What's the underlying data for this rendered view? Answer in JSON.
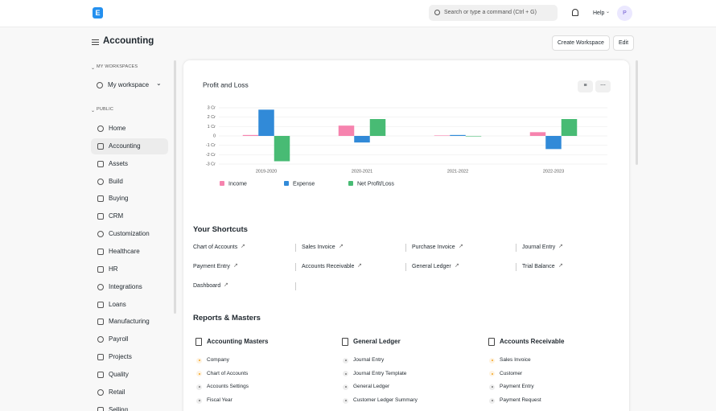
{
  "navbar": {
    "logo": "E",
    "search_placeholder": "Search or type a command (Ctrl + G)",
    "help": "Help",
    "avatar": "P"
  },
  "header": {
    "title": "Accounting",
    "buttons": [
      "Create Workspace",
      "Edit"
    ]
  },
  "sidebar": {
    "sections": [
      {
        "title": "MY WORKSPACES",
        "items": [
          "My workspace"
        ]
      },
      {
        "title": "PUBLIC",
        "active": "Accounting",
        "items": [
          "Home",
          "Accounting",
          "Assets",
          "Build",
          "Buying",
          "CRM",
          "Customization",
          "Healthcare",
          "HR",
          "Integrations",
          "Loans",
          "Manufacturing",
          "Payroll",
          "Projects",
          "Quality",
          "Retail",
          "Selling"
        ]
      }
    ]
  },
  "chart_data": {
    "type": "bar",
    "title": "Profit and Loss",
    "categories": [
      "2019-2020",
      "2020-2021",
      "2021-2022",
      "2022-2023"
    ],
    "series": [
      {
        "name": "Income",
        "color": "#f683ae",
        "values": [
          0.1,
          1.1,
          0.05,
          0.4
        ]
      },
      {
        "name": "Expense",
        "color": "#318ad8",
        "values": [
          2.8,
          -0.7,
          0.1,
          -1.4
        ]
      },
      {
        "name": "Net Profit/Loss",
        "color": "#48bb74",
        "values": [
          -2.7,
          1.8,
          -0.05,
          1.8
        ]
      }
    ],
    "ylim": [
      -3,
      3
    ],
    "yticks": [
      {
        "value": -3,
        "label": "-3 Cr"
      },
      {
        "value": -2,
        "label": "-2 Cr"
      },
      {
        "value": -1,
        "label": "-1 Cr"
      },
      0,
      {
        "value": 1,
        "label": "1 Cr"
      },
      {
        "value": 2,
        "label": "2 Cr"
      },
      {
        "value": 3,
        "label": "3 Cr"
      }
    ],
    "grid": true,
    "legend": "bottom"
  },
  "shortcuts": {
    "title": "Your Shortcuts",
    "items": [
      "Chart of Accounts",
      "Sales Invoice",
      "Purchase Invoice",
      "Journal Entry",
      "Payment Entry",
      "Accounts Receivable",
      "General Ledger",
      "Trial Balance",
      "Dashboard"
    ]
  },
  "reports": {
    "title": "Reports & Masters",
    "columns": [
      {
        "title": "Accounting Masters",
        "items": [
          {
            "label": "Company",
            "dot": "#f5a623"
          },
          {
            "label": "Chart of Accounts",
            "dot": "#f5a623"
          },
          {
            "label": "Accounts Settings",
            "dot": "#777777"
          },
          {
            "label": "Fiscal Year",
            "dot": "#777777"
          }
        ]
      },
      {
        "title": "General Ledger",
        "items": [
          {
            "label": "Journal Entry",
            "dot": "#777777"
          },
          {
            "label": "Journal Entry Template",
            "dot": "#777777"
          },
          {
            "label": "General Ledger",
            "dot": "#777777"
          },
          {
            "label": "Customer Ledger Summary",
            "dot": "#777777"
          }
        ]
      },
      {
        "title": "Accounts Receivable",
        "items": [
          {
            "label": "Sales Invoice",
            "dot": "#f5a623"
          },
          {
            "label": "Customer",
            "dot": "#f5a623"
          },
          {
            "label": "Payment Entry",
            "dot": "#777777"
          },
          {
            "label": "Payment Request",
            "dot": "#777777"
          }
        ]
      }
    ]
  }
}
